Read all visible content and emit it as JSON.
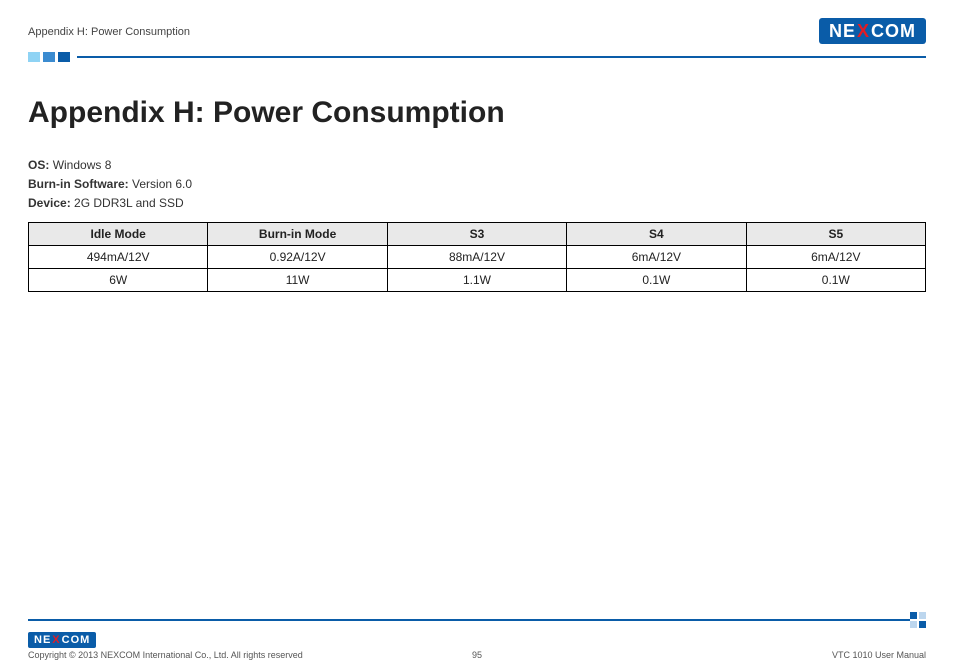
{
  "header": {
    "section_label": "Appendix H: Power Consumption",
    "logo_text_left": "NE",
    "logo_text_x": "X",
    "logo_text_right": "COM"
  },
  "title": "Appendix H: Power Consumption",
  "meta": {
    "os_label": "OS:",
    "os_value": "Windows 8",
    "burnin_label": "Burn-in Software:",
    "burnin_value": "Version 6.0",
    "device_label": "Device:",
    "device_value": "2G DDR3L and SSD"
  },
  "table": {
    "columns": [
      "Idle Mode",
      "Burn-in Mode",
      "S3",
      "S4",
      "S5"
    ],
    "rows": [
      [
        "494mA/12V",
        "0.92A/12V",
        "88mA/12V",
        "6mA/12V",
        "6mA/12V"
      ],
      [
        "6W",
        "11W",
        "1.1W",
        "0.1W",
        "0.1W"
      ]
    ]
  },
  "footer": {
    "logo_text_left": "NE",
    "logo_text_x": "X",
    "logo_text_right": "COM",
    "copyright": "Copyright © 2013 NEXCOM International Co., Ltd. All rights reserved",
    "page_number": "95",
    "doc_title": "VTC 1010 User Manual"
  },
  "colors": {
    "brand_blue": "#0a5ca8",
    "brand_red": "#e31b23",
    "light_blue": "#8fd3f4",
    "mid_blue": "#3b8bd0",
    "header_gray": "#e9e9e9"
  }
}
